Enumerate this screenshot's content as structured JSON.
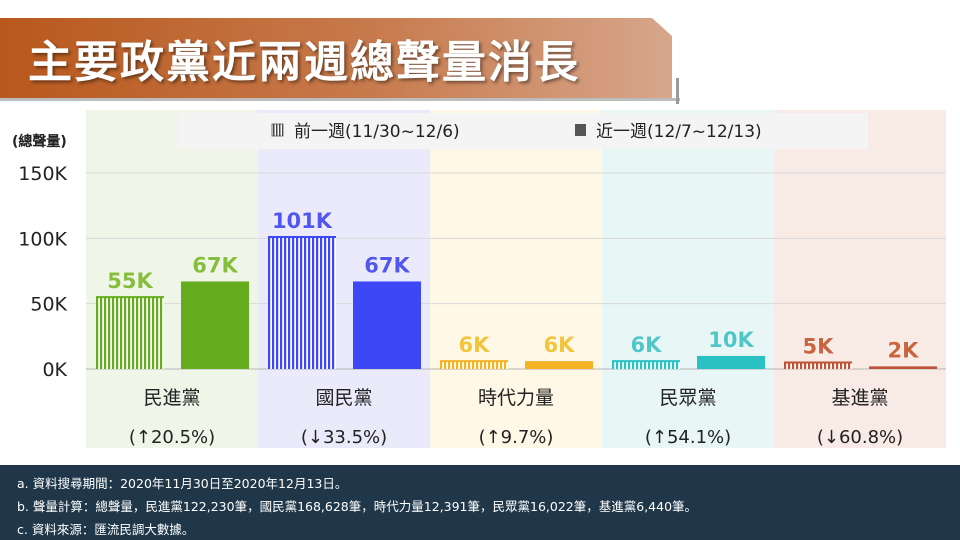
{
  "title": "主要政黨近兩週總聲量消長",
  "chart_data": {
    "type": "bar",
    "ylabel": "(總聲量)",
    "ylim": [
      0,
      150000
    ],
    "yticks": [
      0,
      50000,
      100000,
      150000
    ],
    "ytick_labels": [
      "0K",
      "50K",
      "100K",
      "150K"
    ],
    "grid": true,
    "legend_position": "top",
    "categories": [
      "民進黨",
      "國民黨",
      "時代力量",
      "民眾黨",
      "基進黨"
    ],
    "changes": [
      "(↑20.5%)",
      "(↓33.5%)",
      "(↑9.7%)",
      "(↑54.1%)",
      "(↓60.8%)"
    ],
    "series": [
      {
        "name": "前一週(11/30~12/6)",
        "pattern": "vertical-stripes",
        "values": [
          55000,
          101000,
          6000,
          6000,
          5000
        ],
        "labels": [
          "55K",
          "101K",
          "6K",
          "6K",
          "5K"
        ]
      },
      {
        "name": "近一週(12/7~12/13)",
        "pattern": "solid",
        "values": [
          67000,
          67000,
          6000,
          10000,
          2000
        ],
        "labels": [
          "67K",
          "67K",
          "6K",
          "10K",
          "2K"
        ]
      }
    ],
    "colors": {
      "bars": [
        "#65ad1e",
        "#3d47f5",
        "#f5b324",
        "#29c1c4",
        "#be5236"
      ],
      "labels": [
        "#85bd3c",
        "#5056ee",
        "#f3c53d",
        "#4fc7c9",
        "#c9643f"
      ],
      "backgrounds": [
        "#eff6e8",
        "#ebeafb",
        "#fff8e7",
        "#e8f6f5",
        "#f8ebe6"
      ]
    }
  },
  "footer": {
    "line_a": "a. 資料搜尋期間：2020年11月30日至2020年12月13日。",
    "line_b": "b. 聲量計算：總聲量，民進黨122,230筆，國民黨168,628筆，時代力量12,391筆，民眾黨16,022筆，基進黨6,440筆。",
    "line_c": "c. 資料來源：匯流民調大數據。"
  }
}
